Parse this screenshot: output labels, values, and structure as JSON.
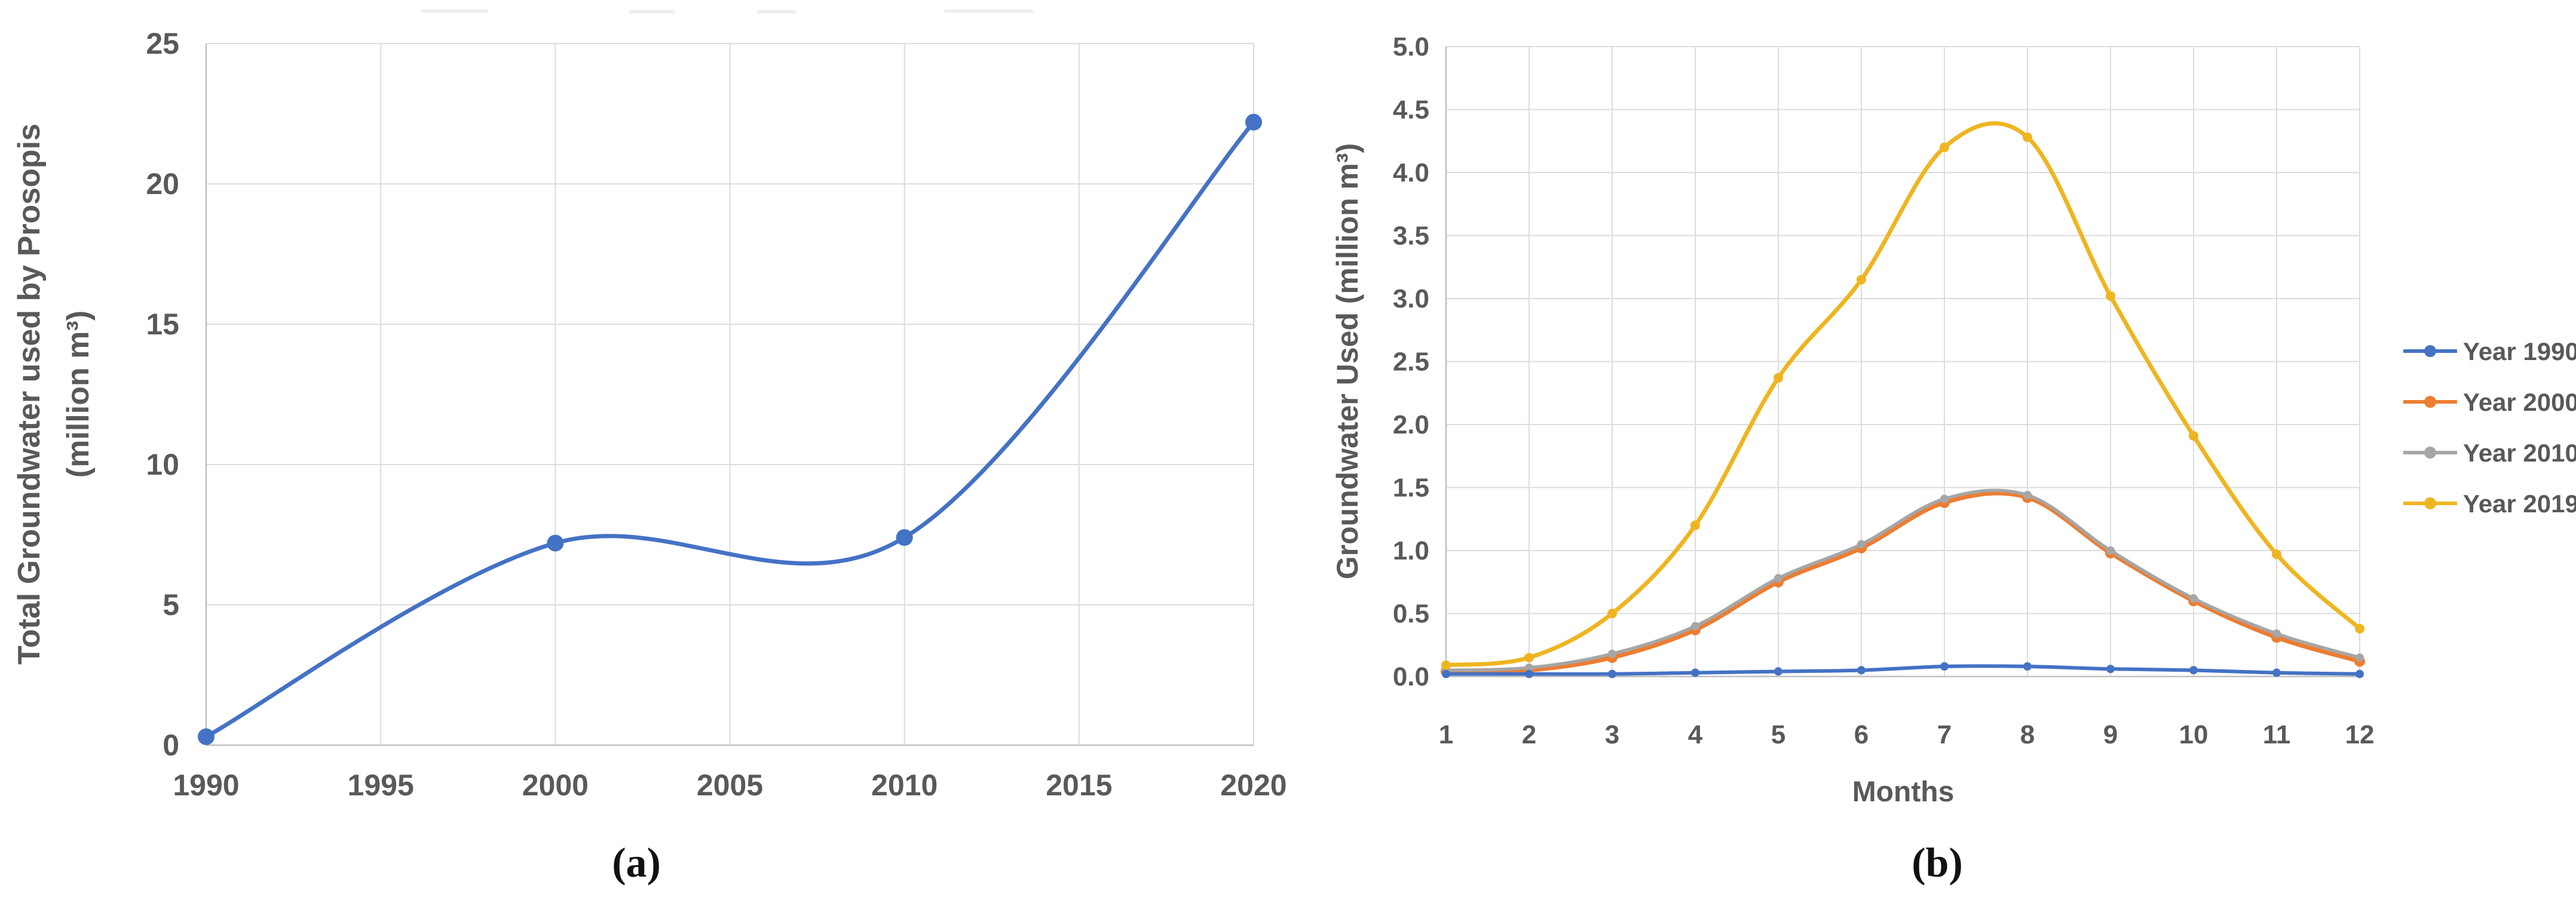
{
  "page": {
    "background": "#ffffff",
    "figure_labels": [
      "(a)",
      "(b)"
    ]
  },
  "styles": {
    "text_color": "#595959",
    "grid_color": "#dcdcdc",
    "axis_color": "#c0c0c0",
    "blue": "#4472C4",
    "orange": "#ED7D31",
    "gray": "#A6A6A6",
    "gold": "#EFB521"
  },
  "chart_data": [
    {
      "id": "a",
      "type": "line",
      "caption": "(a)",
      "ylabel_line1": "Total Groundwater used by Prosopis",
      "ylabel_line2": "(million m³)",
      "xlabel": "",
      "x": [
        1990,
        2000,
        2010,
        2020
      ],
      "xlim": [
        1990,
        2020
      ],
      "ylim": [
        0,
        25
      ],
      "xticks": [
        "1990",
        "1995",
        "2000",
        "2005",
        "2010",
        "2015",
        "2020"
      ],
      "yticks": [
        "0",
        "5",
        "10",
        "15",
        "20",
        "25"
      ],
      "grid": true,
      "smooth": true,
      "legend": null,
      "series": [
        {
          "name": "Total Groundwater used by Prosopis",
          "color": "#4472C4",
          "values": [
            0.3,
            7.2,
            7.4,
            22.2
          ]
        }
      ]
    },
    {
      "id": "b",
      "type": "line",
      "caption": "(b)",
      "ylabel": "Groundwater Used (million m³)",
      "xlabel": "Months",
      "x": [
        1,
        2,
        3,
        4,
        5,
        6,
        7,
        8,
        9,
        10,
        11,
        12
      ],
      "xlim": [
        1,
        12
      ],
      "ylim": [
        0,
        5
      ],
      "xticks": [
        "1",
        "2",
        "3",
        "4",
        "5",
        "6",
        "7",
        "8",
        "9",
        "10",
        "11",
        "12"
      ],
      "yticks": [
        "0.0",
        "0.5",
        "1.0",
        "1.5",
        "2.0",
        "2.5",
        "3.0",
        "3.5",
        "4.0",
        "4.5",
        "5.0"
      ],
      "grid": true,
      "smooth": true,
      "legend_position": "right",
      "series": [
        {
          "name": "Year 1990",
          "color": "#4472C4",
          "values": [
            0.02,
            0.02,
            0.02,
            0.03,
            0.04,
            0.05,
            0.08,
            0.08,
            0.06,
            0.05,
            0.03,
            0.02
          ]
        },
        {
          "name": "Year 2000",
          "color": "#ED7D31",
          "values": [
            0.04,
            0.05,
            0.15,
            0.37,
            0.75,
            1.02,
            1.38,
            1.42,
            0.98,
            0.6,
            0.31,
            0.12
          ]
        },
        {
          "name": "Year 2010",
          "color": "#A6A6A6",
          "values": [
            0.05,
            0.07,
            0.18,
            0.4,
            0.78,
            1.05,
            1.41,
            1.44,
            1.0,
            0.62,
            0.34,
            0.15
          ]
        },
        {
          "name": "Year 2019",
          "color": "#EFB521",
          "values": [
            0.09,
            0.15,
            0.5,
            1.2,
            2.37,
            3.15,
            4.2,
            4.28,
            3.02,
            1.91,
            0.97,
            0.38
          ]
        }
      ]
    }
  ]
}
